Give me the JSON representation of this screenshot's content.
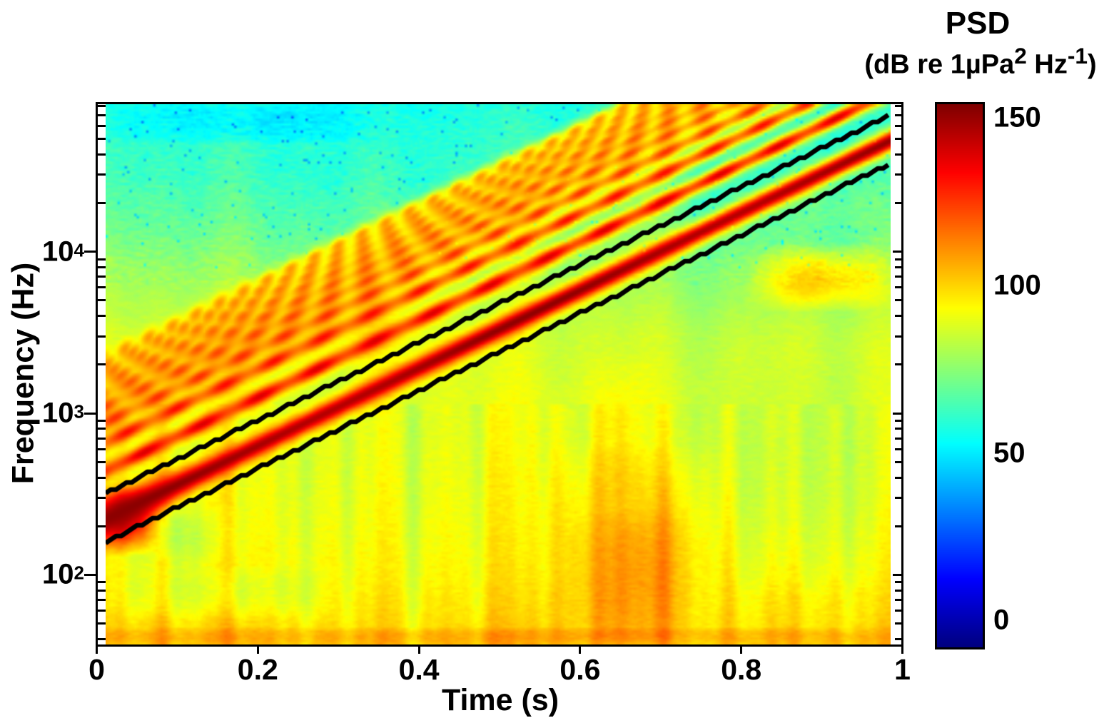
{
  "chart_data": {
    "type": "heatmap",
    "subtype": "spectrogram",
    "xlabel": "Time (s)",
    "ylabel": "Frequency (Hz)",
    "x_axis": {
      "min": 0,
      "max": 1,
      "ticks": [
        {
          "v": 0,
          "label": "0"
        },
        {
          "v": 0.2,
          "label": "0.2"
        },
        {
          "v": 0.4,
          "label": "0.4"
        },
        {
          "v": 0.6,
          "label": "0.6"
        },
        {
          "v": 0.8,
          "label": "0.8"
        },
        {
          "v": 1,
          "label": "1"
        }
      ]
    },
    "y_axis": {
      "scale": "log",
      "min_hz": 37,
      "max_hz": 82000,
      "major_ticks": [
        {
          "f": 10000,
          "base": "10",
          "exp": "4"
        },
        {
          "f": 1000,
          "base": "10",
          "exp": "3"
        },
        {
          "f": 100,
          "base": "10",
          "exp": "2"
        }
      ],
      "minor_tick_multiples": [
        2,
        3,
        4,
        5,
        6,
        7,
        8,
        9
      ]
    },
    "colorbar": {
      "title": "PSD",
      "subtitle_parts": [
        {
          "t": "(dB re 1µPa"
        },
        {
          "t": "2",
          "sup": true
        },
        {
          "t": " Hz"
        },
        {
          "t": "-1",
          "sup": true
        },
        {
          "t": ")"
        }
      ],
      "colormap": "jet",
      "clim_db": [
        -8,
        154
      ],
      "ticks": [
        {
          "v": 150,
          "label": "150"
        },
        {
          "v": 100,
          "label": "100"
        },
        {
          "v": 50,
          "label": "50"
        },
        {
          "v": 0,
          "label": "0"
        }
      ]
    },
    "time_data_range": [
      0.011,
      0.985
    ],
    "signal": {
      "description": "Upsweep chirp with harmonics on ambient noise; fundamental bracketed by two black guide lines",
      "chirp": {
        "t_start": 0.011,
        "t_end": 0.982,
        "f_start_hz": 220,
        "f_end_hz": 48000,
        "peak_db": 149,
        "harmonics": [
          {
            "n": 2,
            "db": 131
          },
          {
            "n": 3,
            "db": 124
          },
          {
            "n": 4,
            "db": 118
          },
          {
            "n": 5,
            "db": 114
          },
          {
            "n": 6,
            "db": 111
          },
          {
            "n": 7,
            "db": 108
          },
          {
            "n": 8,
            "db": 105
          },
          {
            "n": 9,
            "db": 103
          },
          {
            "n": 10,
            "db": 101
          }
        ]
      },
      "guide_lines": [
        {
          "t_start": 0.011,
          "t_end": 0.982,
          "f_start_hz": 318,
          "f_end_hz": 69400
        },
        {
          "t_start": 0.011,
          "t_end": 0.982,
          "f_start_hz": 160,
          "f_end_hz": 34800
        }
      ],
      "guide_color": "#000000"
    },
    "background_profile_db": [
      [
        37,
        101
      ],
      [
        60,
        97
      ],
      [
        100,
        94
      ],
      [
        200,
        92
      ],
      [
        500,
        90
      ],
      [
        1000,
        89
      ],
      [
        3000,
        85
      ],
      [
        8000,
        76
      ],
      [
        15000,
        68
      ],
      [
        30000,
        62
      ],
      [
        50000,
        60
      ],
      [
        82000,
        57
      ]
    ],
    "features": [
      {
        "t": [
          0.54,
          0.8
        ],
        "f": [
          37,
          650
        ],
        "db": 10,
        "p": [
          1,
          0.7
        ]
      },
      {
        "t": [
          0.58,
          0.76
        ],
        "f": [
          37,
          260
        ],
        "db": 6,
        "p": [
          1,
          0.6
        ]
      },
      {
        "t": [
          0.58,
          0.76
        ],
        "f": [
          8000,
          82000
        ],
        "db": 7,
        "p": [
          1,
          0.5
        ]
      },
      {
        "t": [
          0.31,
          0.48
        ],
        "f": [
          1000,
          22000
        ],
        "db": 4,
        "p": [
          1,
          0.5
        ]
      },
      {
        "t": [
          0.0,
          1.0
        ],
        "f": [
          37,
          47
        ],
        "db": 7,
        "p": [
          0.15,
          0.5
        ]
      },
      {
        "t": [
          0.8,
          1.0
        ],
        "f": [
          4200,
          11500
        ],
        "db": 24,
        "p": [
          1,
          1
        ]
      },
      {
        "t": [
          0.48,
          0.6
        ],
        "f": [
          4000,
          45000
        ],
        "db": 5,
        "p": [
          1,
          0.8
        ]
      },
      {
        "t": [
          0.76,
          1.0
        ],
        "f": [
          75,
          2200
        ],
        "db": -5,
        "p": [
          0.6,
          0.8
        ]
      },
      {
        "t": [
          0.0,
          0.3
        ],
        "f": [
          52,
          115
        ],
        "db": -7,
        "p": [
          0.6,
          0.8
        ]
      },
      {
        "t": [
          0.0,
          0.36
        ],
        "f": [
          48000,
          82000
        ],
        "db": -8,
        "p": [
          0.5,
          0.3
        ]
      },
      {
        "t": [
          0.1,
          0.44
        ],
        "f": [
          1700,
          6800
        ],
        "db": 8,
        "p": [
          1,
          1
        ]
      },
      {
        "t": [
          0.0,
          0.18
        ],
        "f": [
          100,
          270
        ],
        "db": -8,
        "p": [
          0.8,
          1
        ]
      },
      {
        "t": [
          0.6,
          0.7
        ],
        "f": [
          250,
          2500
        ],
        "db": 5,
        "p": [
          1,
          1
        ]
      },
      {
        "t": [
          0.86,
          0.99
        ],
        "f": [
          13000,
          30000
        ],
        "db": 6,
        "p": [
          1,
          1
        ]
      },
      {
        "t": [
          0.0,
          0.08
        ],
        "f": [
          130,
          360
        ],
        "db": 46,
        "p": [
          1,
          1
        ]
      }
    ],
    "noise_seed": 11
  }
}
